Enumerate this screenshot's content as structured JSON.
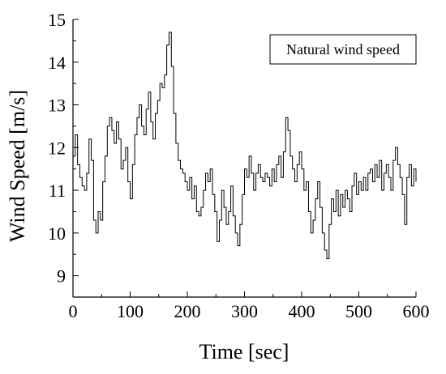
{
  "chart_data": {
    "type": "line",
    "title": "",
    "xlabel": "Time [sec]",
    "ylabel": "Wind Speed [m/s]",
    "xlim": [
      0,
      600
    ],
    "ylim": [
      8.5,
      15
    ],
    "xticks": [
      0,
      100,
      200,
      300,
      400,
      500,
      600
    ],
    "yticks": [
      9,
      10,
      11,
      12,
      13,
      14,
      15
    ],
    "grid": false,
    "legend_position": "top-right",
    "line_color": "#000000",
    "series": [
      {
        "name": "Natural wind speed",
        "x": [
          0,
          4,
          8,
          12,
          16,
          20,
          24,
          28,
          32,
          36,
          40,
          44,
          48,
          52,
          56,
          60,
          64,
          68,
          72,
          76,
          80,
          84,
          88,
          92,
          96,
          100,
          104,
          108,
          112,
          116,
          120,
          124,
          128,
          132,
          136,
          140,
          144,
          148,
          152,
          156,
          160,
          164,
          168,
          172,
          176,
          180,
          184,
          188,
          192,
          196,
          200,
          204,
          208,
          212,
          216,
          220,
          224,
          228,
          232,
          236,
          240,
          244,
          248,
          252,
          256,
          260,
          264,
          268,
          272,
          276,
          280,
          284,
          288,
          292,
          296,
          300,
          304,
          308,
          312,
          316,
          320,
          324,
          328,
          332,
          336,
          340,
          344,
          348,
          352,
          356,
          360,
          364,
          368,
          372,
          376,
          380,
          384,
          388,
          392,
          396,
          400,
          404,
          408,
          412,
          416,
          420,
          424,
          428,
          432,
          436,
          440,
          444,
          448,
          452,
          456,
          460,
          464,
          468,
          472,
          476,
          480,
          484,
          488,
          492,
          496,
          500,
          504,
          508,
          512,
          516,
          520,
          524,
          528,
          532,
          536,
          540,
          544,
          548,
          552,
          556,
          560,
          564,
          568,
          572,
          576,
          580,
          584,
          588,
          592,
          596,
          600
        ],
        "values": [
          11.8,
          12.3,
          11.6,
          11.3,
          11.1,
          11.0,
          11.4,
          12.2,
          11.7,
          10.3,
          10.0,
          10.5,
          10.3,
          11.2,
          11.8,
          12.5,
          12.7,
          12.4,
          12.1,
          12.6,
          12.2,
          11.5,
          11.7,
          12.0,
          11.2,
          10.8,
          11.6,
          12.3,
          12.7,
          13.0,
          12.5,
          12.3,
          12.9,
          13.3,
          12.6,
          12.2,
          12.8,
          13.1,
          13.5,
          13.4,
          13.7,
          14.4,
          14.7,
          13.9,
          12.8,
          12.1,
          11.7,
          11.5,
          11.4,
          11.2,
          11.0,
          11.3,
          10.8,
          11.1,
          10.5,
          10.4,
          10.6,
          11.0,
          11.4,
          11.2,
          11.5,
          10.9,
          10.5,
          9.8,
          10.3,
          11.0,
          10.6,
          10.2,
          10.5,
          11.1,
          10.4,
          10.0,
          9.7,
          10.2,
          10.9,
          11.5,
          11.3,
          11.8,
          11.4,
          11.0,
          11.4,
          11.6,
          11.3,
          11.2,
          11.4,
          11.3,
          11.1,
          11.5,
          11.2,
          11.6,
          11.8,
          11.3,
          11.9,
          12.7,
          12.4,
          11.8,
          11.5,
          11.2,
          11.6,
          11.9,
          11.5,
          11.0,
          11.2,
          10.5,
          10.0,
          10.3,
          10.8,
          11.2,
          10.6,
          10.0,
          9.6,
          9.4,
          10.2,
          10.8,
          10.5,
          11.0,
          10.4,
          10.9,
          10.6,
          11.0,
          10.8,
          10.5,
          11.1,
          11.4,
          10.9,
          11.2,
          11.0,
          11.3,
          11.0,
          11.4,
          11.5,
          11.2,
          11.6,
          11.3,
          11.7,
          11.0,
          11.4,
          11.6,
          11.3,
          11.0,
          11.7,
          12.0,
          11.6,
          11.3,
          10.9,
          10.2,
          11.3,
          11.6,
          11.1,
          11.5,
          11.2
        ]
      }
    ]
  }
}
